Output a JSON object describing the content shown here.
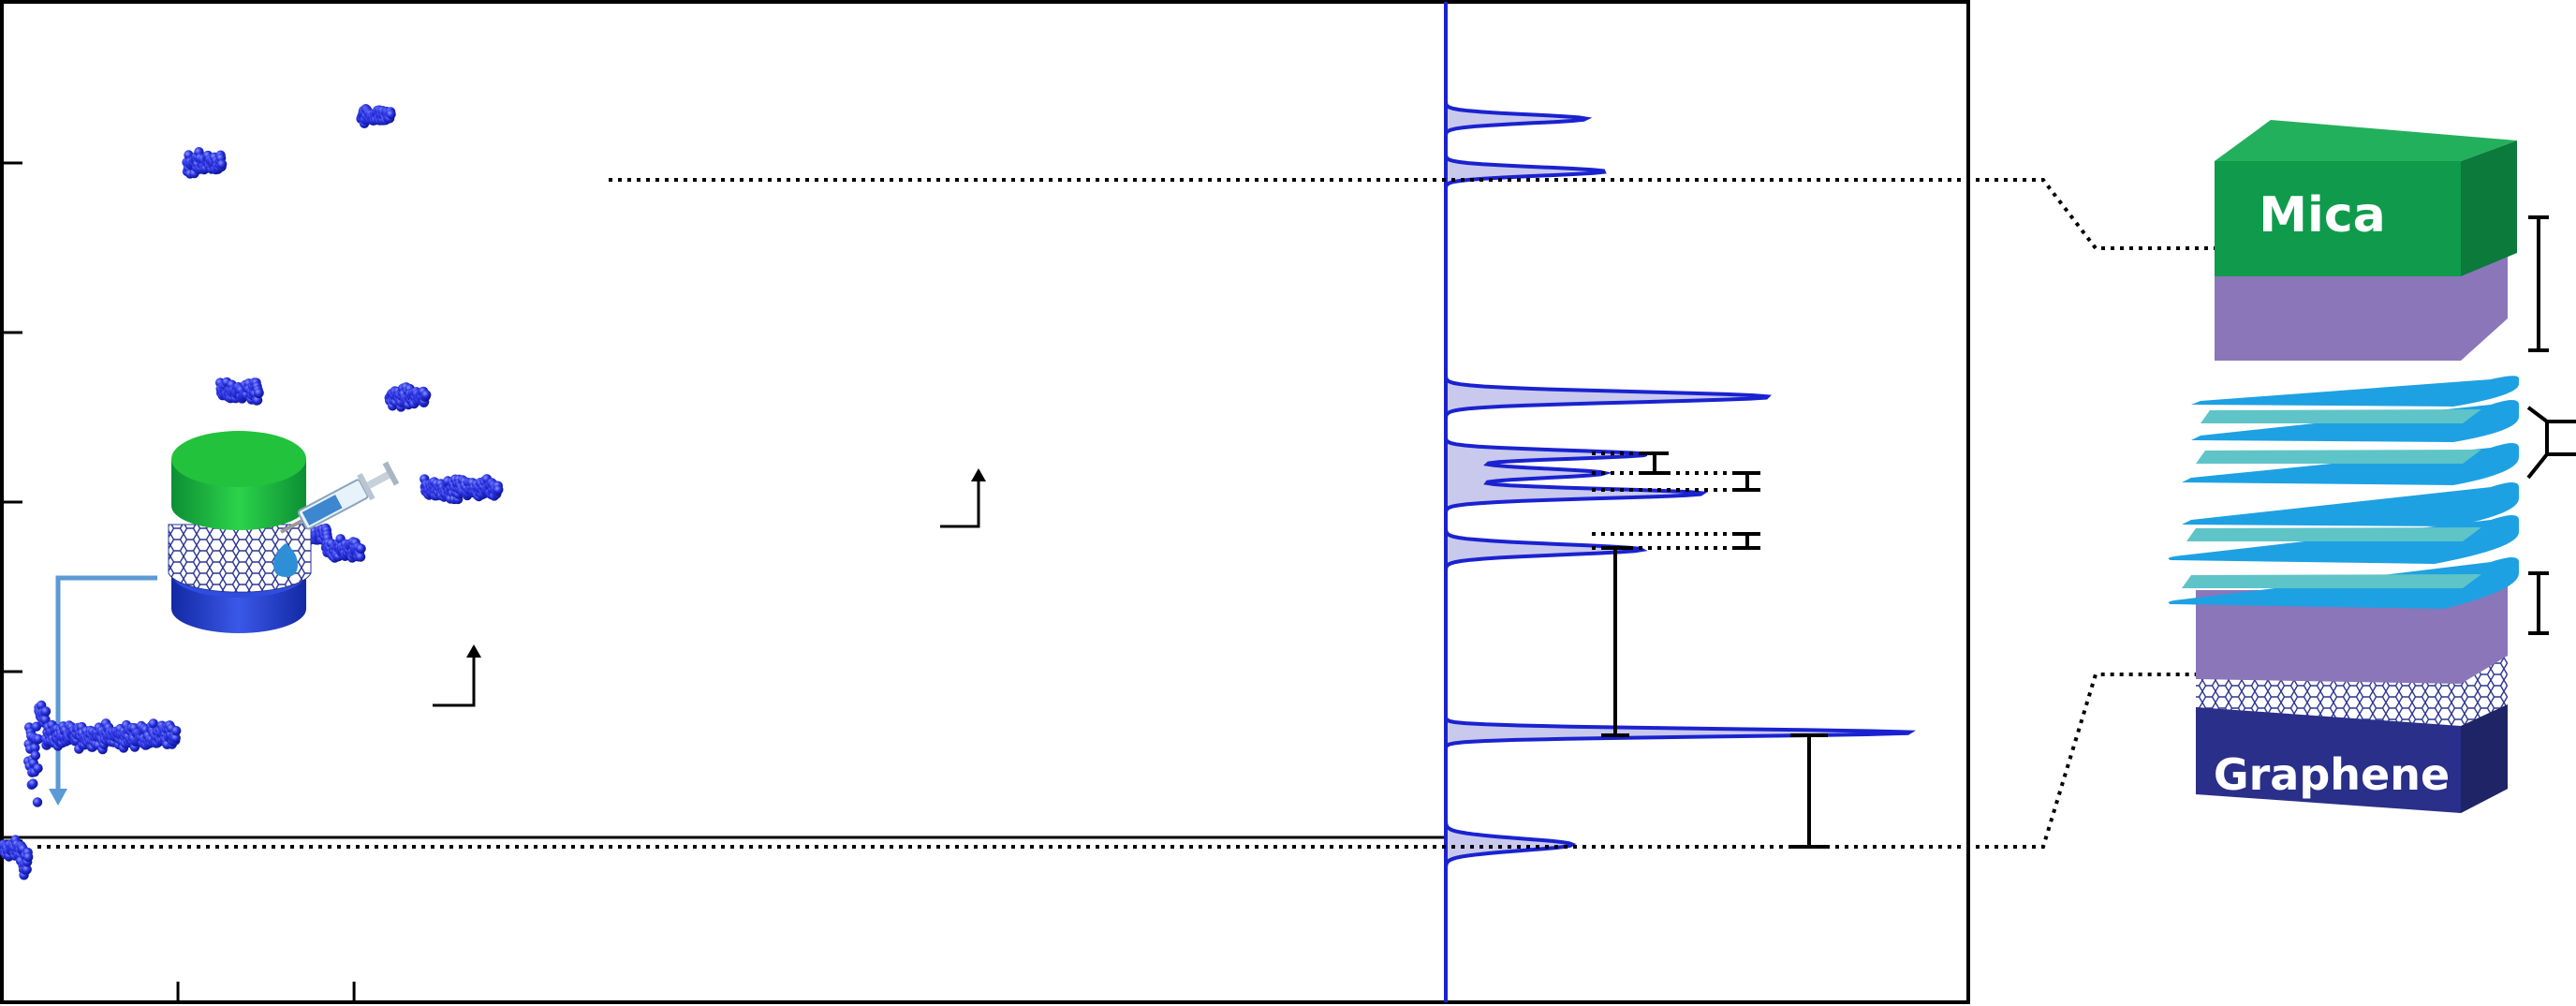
{
  "chart_data": [
    {
      "type": "scatter",
      "panel": "time-trace",
      "title": "",
      "xlabel": "",
      "ylabel": "",
      "grid": false,
      "xlim": [
        0,
        8.2
      ],
      "ylim": [
        -0.95,
        4.95
      ],
      "xticks": [
        1,
        2
      ],
      "yticks": [
        0,
        1,
        2,
        3,
        4
      ],
      "series": [
        {
          "color": "#1e22d8",
          "segments": [
            {
              "x0": 0.0,
              "x1": 0.12,
              "y": -0.05,
              "noise": 0.05
            },
            {
              "x0": 0.12,
              "x1": 0.15,
              "y": -0.15,
              "noise": 0.1
            },
            {
              "x0": 0.15,
              "x1": 0.21,
              "y": 0.5,
              "noise": 0.25
            },
            {
              "x0": 0.21,
              "x1": 0.25,
              "y": 0.75,
              "noise": 0.05
            },
            {
              "x0": 0.25,
              "x1": 0.99,
              "y": 0.62,
              "noise": 0.06
            },
            {
              "x0": 1.05,
              "x1": 1.25,
              "y": 4.0,
              "noise": 0.05
            },
            {
              "x0": 1.24,
              "x1": 1.46,
              "y": 2.65,
              "noise": 0.05
            },
            {
              "x0": 1.45,
              "x1": 1.65,
              "y": 2.17,
              "noise": 0.05
            },
            {
              "x0": 1.64,
              "x1": 1.85,
              "y": 1.8,
              "noise": 0.05
            },
            {
              "x0": 1.84,
              "x1": 2.04,
              "y": 1.72,
              "noise": 0.05
            },
            {
              "x0": 2.04,
              "x1": 2.21,
              "y": 4.28,
              "noise": 0.04
            },
            {
              "x0": 2.2,
              "x1": 2.41,
              "y": 2.62,
              "noise": 0.05
            },
            {
              "x0": 2.4,
              "x1": 2.82,
              "y": 2.08,
              "noise": 0.05
            }
          ]
        }
      ]
    },
    {
      "type": "area",
      "panel": "histogram",
      "orientation": "horizontal",
      "title": "",
      "ylim": [
        -0.95,
        4.95
      ],
      "color": "#1a22cf",
      "peaks": [
        {
          "y": -0.02,
          "amplitude": 0.27,
          "width": 0.035
        },
        {
          "y": 0.64,
          "amplitude": 1.0,
          "width": 0.022
        },
        {
          "y": 1.72,
          "amplitude": 0.42,
          "width": 0.03
        },
        {
          "y": 2.05,
          "amplitude": 0.55,
          "width": 0.028
        },
        {
          "y": 2.17,
          "amplitude": 0.34,
          "width": 0.028
        },
        {
          "y": 2.28,
          "amplitude": 0.43,
          "width": 0.025
        },
        {
          "y": 2.62,
          "amplitude": 0.69,
          "width": 0.03
        },
        {
          "y": 3.95,
          "amplitude": 0.34,
          "width": 0.025
        },
        {
          "y": 4.26,
          "amplitude": 0.3,
          "width": 0.025
        }
      ]
    }
  ],
  "diagram": {
    "top_layer_label": "Mica",
    "bottom_layer_label": "Graphene",
    "colors": {
      "mica": "#0f9a4c",
      "lipid": "#8a76b8",
      "water": "#1ea1e2",
      "water_light": "#5ec4c8",
      "graphene": "#2a2f8a",
      "marker": "#1e22d8",
      "arrow": "#5b9ad4"
    }
  },
  "inset": {
    "description_icon": "sfa-cell-with-syringe-icon"
  }
}
